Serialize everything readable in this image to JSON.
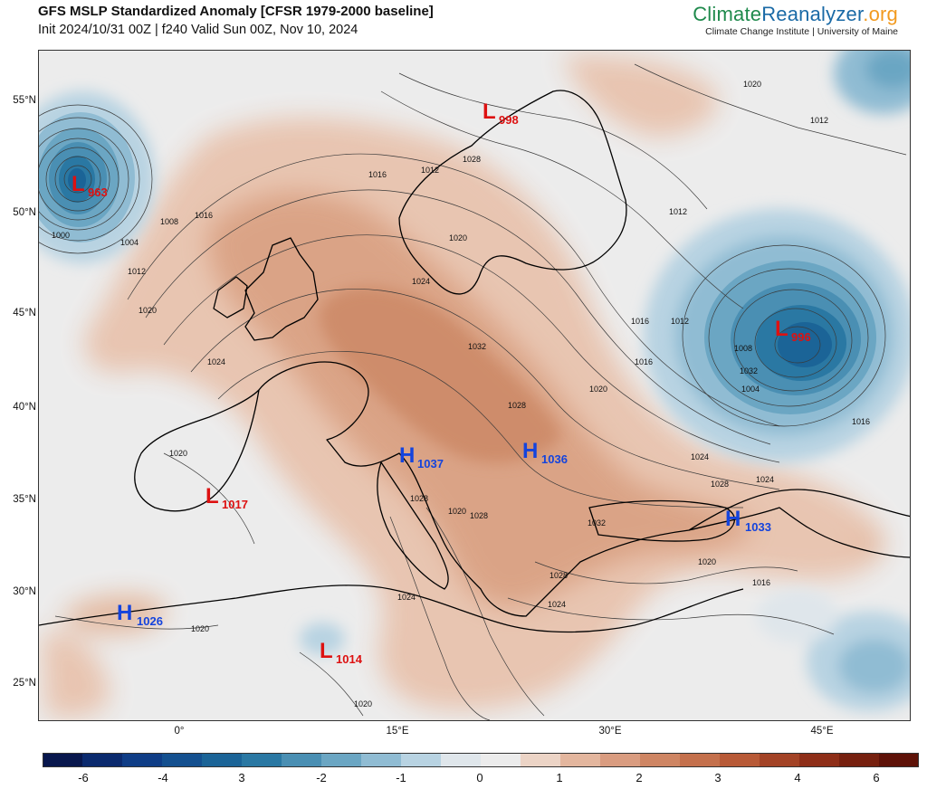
{
  "header": {
    "title": "GFS MSLP Standardized Anomaly [CFSR 1979-2000 baseline]",
    "subtitle": "Init 2024/10/31 00Z | f240 Valid Sun 00Z, Nov 10, 2024"
  },
  "brand": {
    "part1": "Climate",
    "part2": "Reanalyzer",
    "part3": ".org",
    "subtitle": "Climate Change Institute | University of Maine",
    "colors": {
      "climate": "#1f8a4c",
      "reanalyzer": "#1a6aa6",
      "org": "#f29a1f"
    }
  },
  "map": {
    "lat_labels": [
      "55°N",
      "50°N",
      "45°N",
      "40°N",
      "35°N",
      "30°N",
      "25°N"
    ],
    "lon_labels": [
      "0°",
      "15°E",
      "30°E",
      "45°E"
    ],
    "pressure_centers": [
      {
        "type": "L",
        "letter": "L",
        "value": "963"
      },
      {
        "type": "L",
        "letter": "L",
        "value": "998"
      },
      {
        "type": "L",
        "letter": "L",
        "value": "996"
      },
      {
        "type": "L",
        "letter": "L",
        "value": "1017"
      },
      {
        "type": "L",
        "letter": "L",
        "value": "1014"
      },
      {
        "type": "H",
        "letter": "H",
        "value": "1037"
      },
      {
        "type": "H",
        "letter": "H",
        "value": "1036"
      },
      {
        "type": "H",
        "letter": "H",
        "value": "1033"
      },
      {
        "type": "H",
        "letter": "H",
        "value": "1026"
      }
    ],
    "isobar_labels": [
      "1000",
      "1004",
      "1008",
      "1012",
      "1016",
      "1020",
      "1024",
      "1012",
      "1016",
      "1020",
      "1024",
      "1028",
      "1032",
      "1016",
      "1012",
      "1008",
      "1004",
      "1012",
      "1016",
      "1020",
      "1024",
      "1028",
      "1024",
      "1032",
      "1028",
      "1024",
      "1020",
      "1016",
      "1012",
      "1016",
      "1028",
      "1024",
      "1020",
      "1020",
      "1020",
      "1020",
      "1020",
      "1028",
      "1032",
      "1028"
    ],
    "colors": {
      "low_text": "#dd1111",
      "high_text": "#1444dd",
      "frame": "#333333"
    }
  },
  "colorbar": {
    "colors": [
      "#08174d",
      "#0b2a6e",
      "#0f3d86",
      "#14508f",
      "#1b6497",
      "#2a78a3",
      "#4a8fb3",
      "#6ba6c3",
      "#90bcd3",
      "#b8d3e2",
      "#dfe6eb",
      "#ececec",
      "#ecd4c6",
      "#e3b69e",
      "#d99c80",
      "#ce8563",
      "#c4704c",
      "#b85a37",
      "#a34326",
      "#8e2e18",
      "#76200f",
      "#5e1208"
    ],
    "tick_labels": [
      "-6",
      "-4",
      "3",
      "-2",
      "-1",
      "0",
      "1",
      "2",
      "3",
      "4",
      "6"
    ]
  }
}
